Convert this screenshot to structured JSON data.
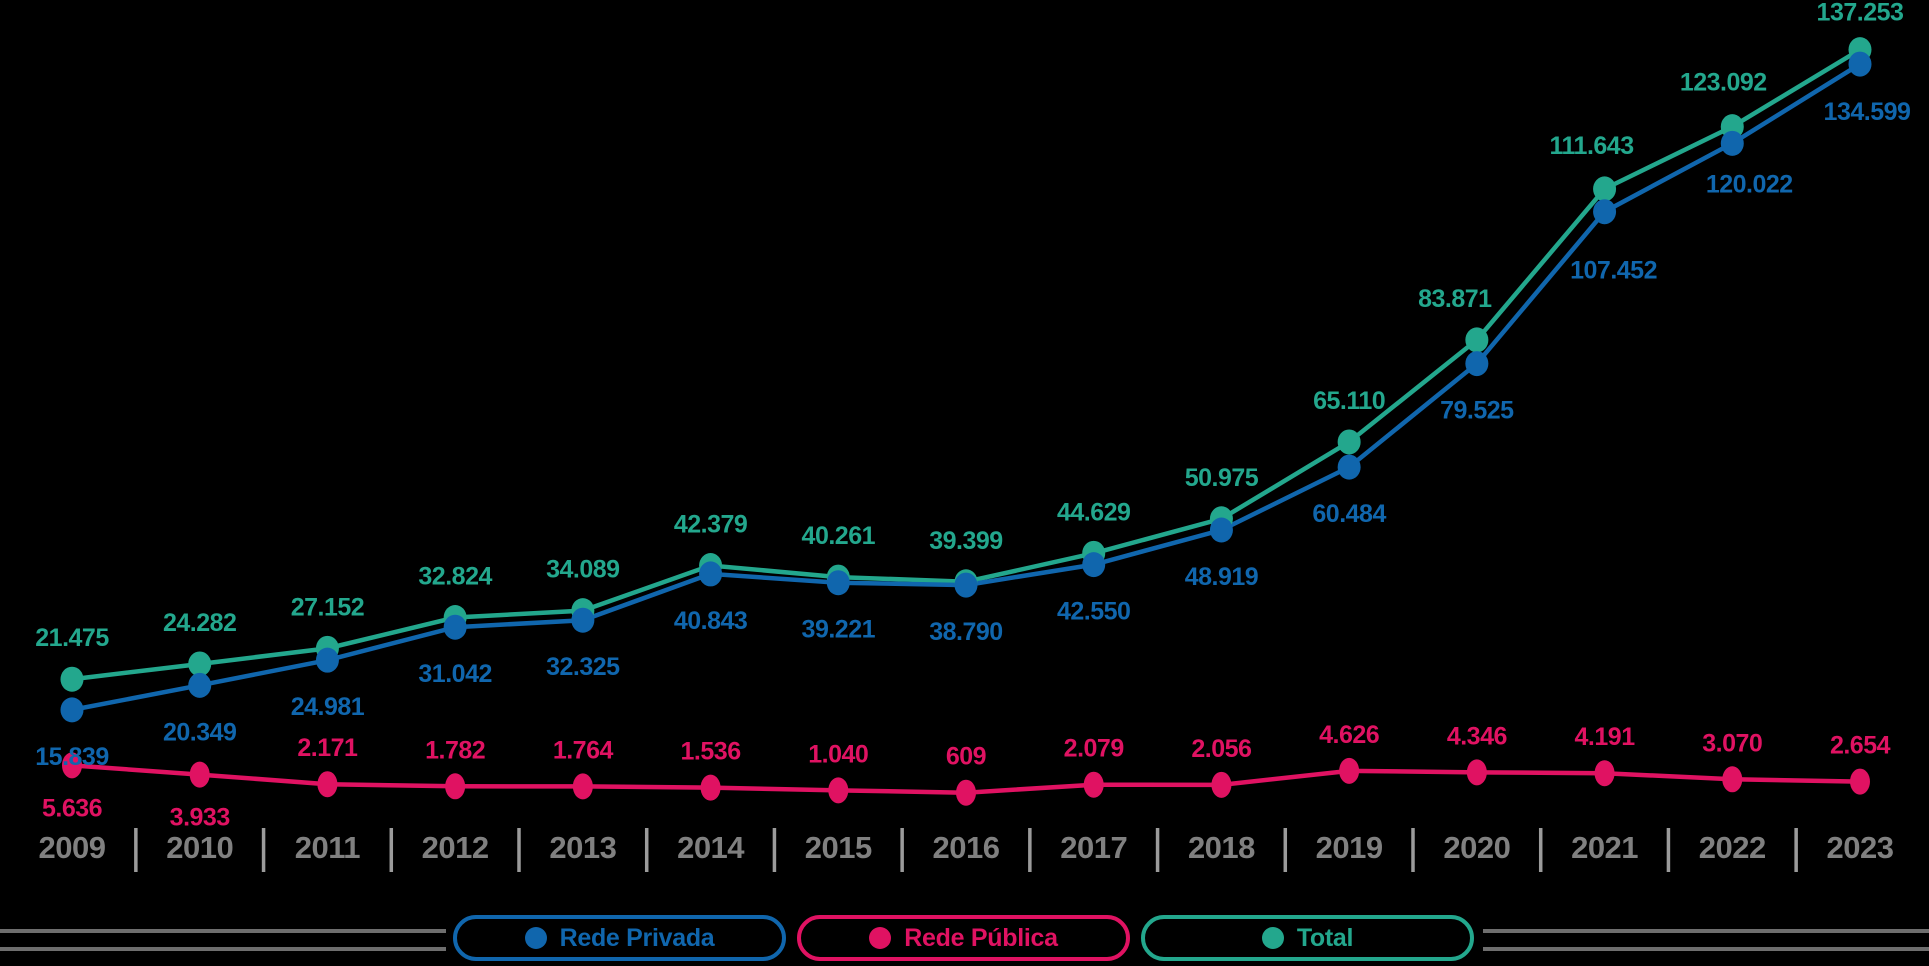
{
  "background": "#000000",
  "chart_data": {
    "type": "line",
    "title": "",
    "categories": [
      "2009",
      "2010",
      "2011",
      "2012",
      "2013",
      "2014",
      "2015",
      "2016",
      "2017",
      "2018",
      "2019",
      "2020",
      "2021",
      "2022",
      "2023"
    ],
    "series": [
      {
        "name": "Rede Privada",
        "color": "#1066AD",
        "values": [
          15839,
          20349,
          24981,
          31042,
          32325,
          40843,
          39221,
          38790,
          42550,
          48919,
          60484,
          79525,
          107452,
          120022,
          134599
        ]
      },
      {
        "name": "Rede Pública",
        "color": "#E01262",
        "values": [
          5636,
          3933,
          2171,
          1782,
          1764,
          1536,
          1040,
          609,
          2079,
          2056,
          4626,
          4346,
          4191,
          3070,
          2654
        ]
      },
      {
        "name": "Total",
        "color": "#23A78D",
        "values": [
          21475,
          24282,
          27152,
          32824,
          34089,
          42379,
          40261,
          39399,
          44629,
          50975,
          65110,
          83871,
          111643,
          123092,
          137253
        ]
      }
    ],
    "value_label_format": "thousands-dot-separator",
    "xlabel": "",
    "ylabel": "",
    "ylim": [
      0,
      146000
    ],
    "grid": false,
    "axis": {
      "tick_color": "#808080",
      "separator_color": "#9B9B9B"
    },
    "legend": {
      "position": "bottom",
      "divider_color": "#6E6E6E",
      "items": [
        {
          "label": "Rede Privada",
          "color": "#1066AD"
        },
        {
          "label": "Rede Pública",
          "color": "#E01262"
        },
        {
          "label": "Total",
          "color": "#23A78D"
        }
      ]
    },
    "label_layout": {
      "Total": {
        "dy": -42,
        "overrides": {
          "11": {
            "dx": -22
          },
          "12": {
            "dx": -13,
            "dy": -44
          },
          "13": {
            "dx": -9,
            "dy": -45
          },
          "14": {
            "dy": -38
          }
        }
      },
      "Rede Privada": {
        "dy": 46,
        "overrides": {
          "12": {
            "dx": 9,
            "dy": 58
          },
          "13": {
            "dx": 17,
            "dy": 40
          },
          "14": {
            "dx": 7,
            "dy": 47
          }
        }
      },
      "Rede Pública": {
        "dy": -37,
        "overrides": {
          "0": {
            "dy": 42
          },
          "1": {
            "dy": 42
          }
        }
      }
    }
  }
}
